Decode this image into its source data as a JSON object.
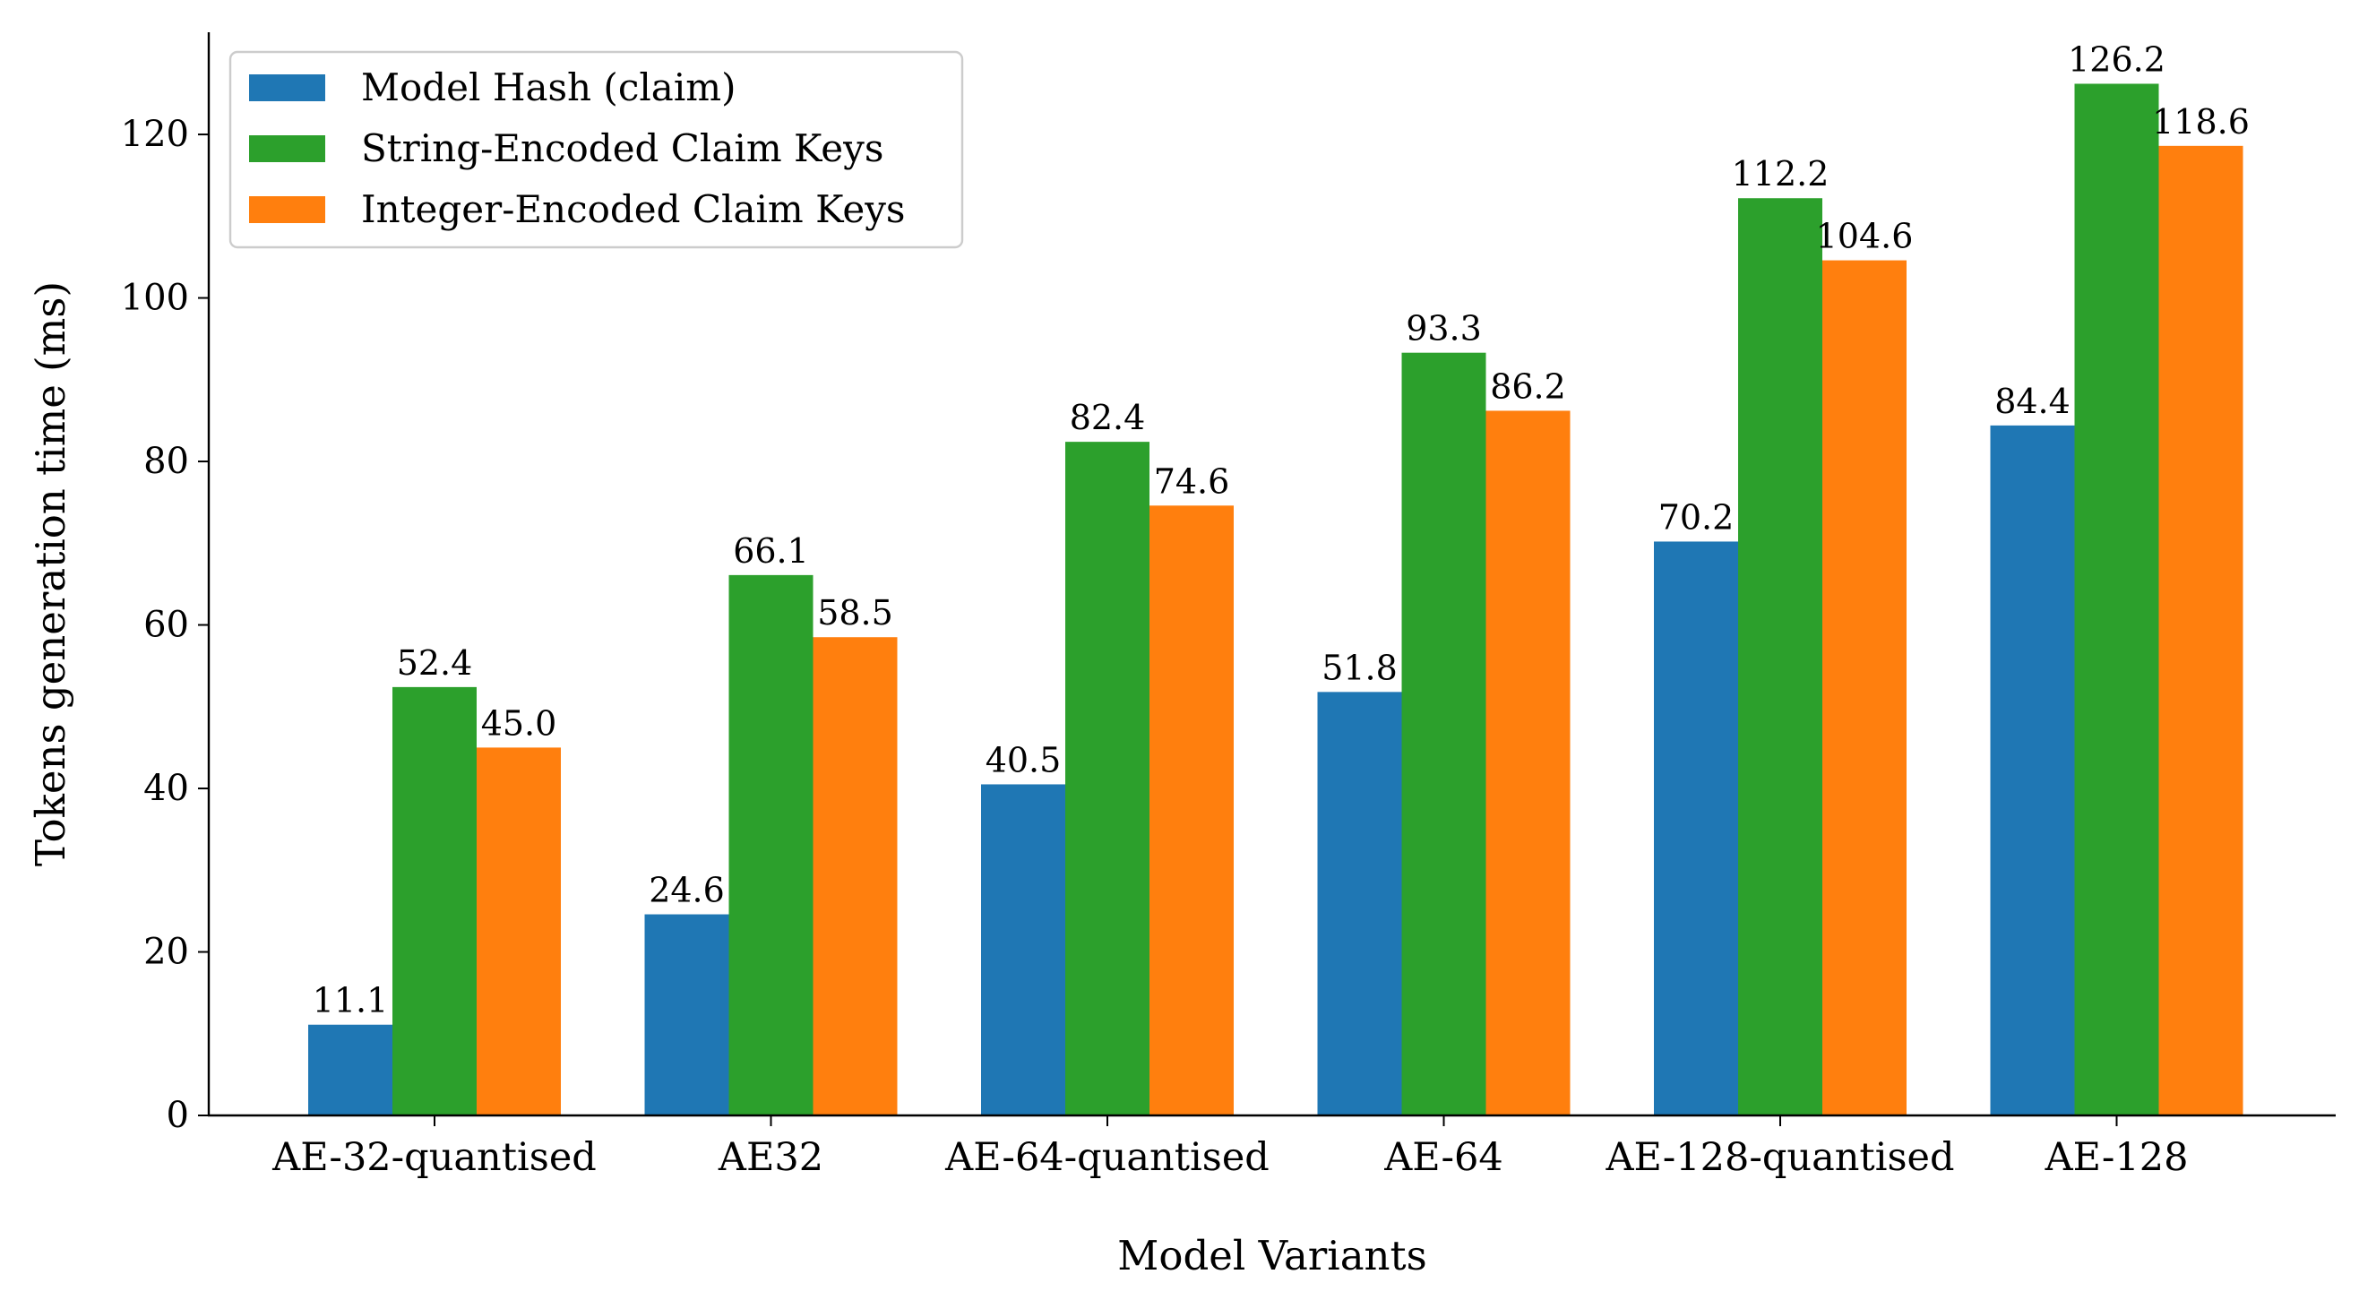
{
  "chart_data": {
    "type": "bar",
    "title": "",
    "xlabel": "Model Variants",
    "ylabel": "Tokens generation time (ms)",
    "ylim": [
      0,
      132.5
    ],
    "yticks": [
      0,
      20,
      40,
      60,
      80,
      100,
      120
    ],
    "grid": false,
    "legend_position": "top-left",
    "categories": [
      "AE-32-quantised",
      "AE32",
      "AE-64-quantised",
      "AE-64",
      "AE-128-quantised",
      "AE-128"
    ],
    "series": [
      {
        "name": "Model Hash (claim)",
        "color": "#1f77b4",
        "values": [
          11.1,
          24.6,
          40.5,
          51.8,
          70.2,
          84.4
        ],
        "labels": [
          "11.1",
          "24.6",
          "40.5",
          "51.8",
          "70.2",
          "84.4"
        ]
      },
      {
        "name": "String-Encoded Claim Keys",
        "color": "#2ca02c",
        "values": [
          52.4,
          66.1,
          82.4,
          93.3,
          112.2,
          126.2
        ],
        "labels": [
          "52.4",
          "66.1",
          "82.4",
          "93.3",
          "112.2",
          "126.2"
        ]
      },
      {
        "name": "Integer-Encoded Claim Keys",
        "color": "#ff7f0e",
        "values": [
          45.0,
          58.5,
          74.6,
          86.2,
          104.6,
          118.6
        ],
        "labels": [
          "45.0",
          "58.5",
          "74.6",
          "86.2",
          "104.6",
          "118.6"
        ]
      }
    ]
  }
}
